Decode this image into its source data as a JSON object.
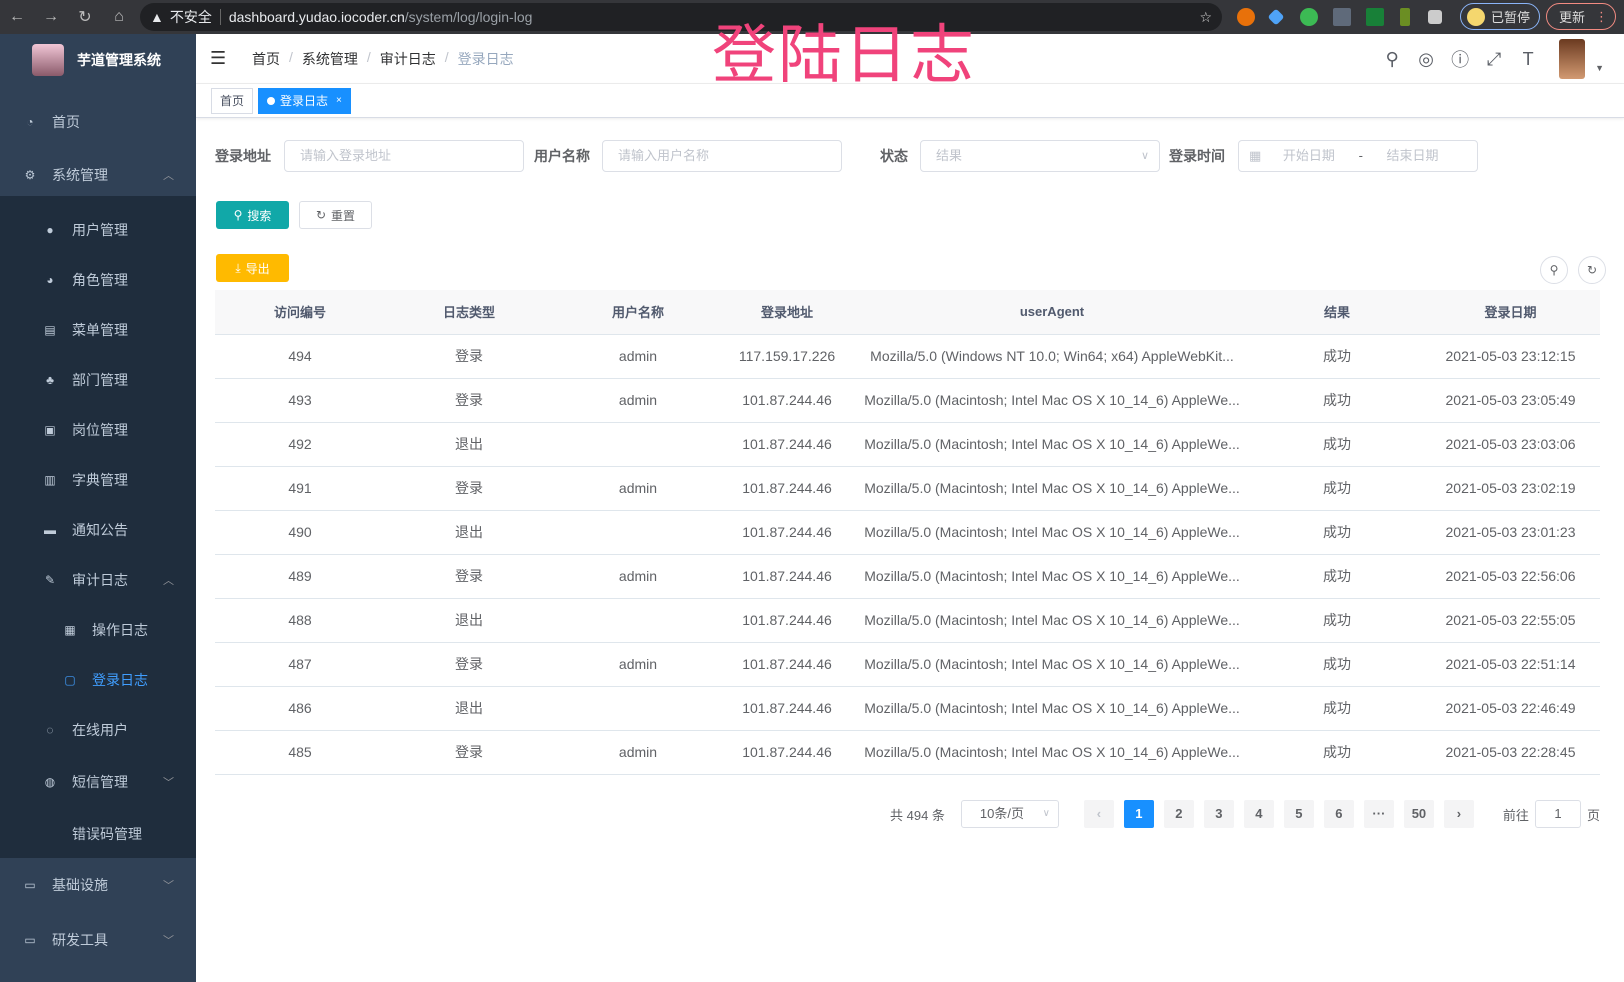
{
  "browser": {
    "security": "不安全",
    "host": "dashboard.yudao.iocoder.cn",
    "path": "/system/log/login-log",
    "profile": "已暂停",
    "update": "更新"
  },
  "sidebar": {
    "title": "芋道管理系统",
    "items": [
      {
        "label": "首页",
        "icon": "dashboard-icon"
      },
      {
        "label": "系统管理",
        "icon": "gear-icon",
        "expanded": true
      },
      {
        "label": "用户管理",
        "icon": "user-icon"
      },
      {
        "label": "角色管理",
        "icon": "peoples-icon"
      },
      {
        "label": "菜单管理",
        "icon": "tree-table-icon"
      },
      {
        "label": "部门管理",
        "icon": "tree-icon"
      },
      {
        "label": "岗位管理",
        "icon": "post-icon"
      },
      {
        "label": "字典管理",
        "icon": "dict-icon"
      },
      {
        "label": "通知公告",
        "icon": "message-icon"
      },
      {
        "label": "审计日志",
        "icon": "log-icon",
        "expanded": true
      },
      {
        "label": "操作日志",
        "icon": "form-icon"
      },
      {
        "label": "登录日志",
        "icon": "logininfor-icon",
        "active": true
      },
      {
        "label": "在线用户",
        "icon": "online-icon"
      },
      {
        "label": "短信管理",
        "icon": "validCode-icon",
        "expanded": false
      },
      {
        "label": "错误码管理",
        "icon": "code-icon"
      },
      {
        "label": "基础设施",
        "icon": "monitor-icon",
        "expanded": false
      },
      {
        "label": "研发工具",
        "icon": "tool-icon",
        "expanded": false
      }
    ]
  },
  "header": {
    "breadcrumb": [
      "首页",
      "系统管理",
      "审计日志",
      "登录日志"
    ],
    "overlay_title": "登陆日志"
  },
  "tags": [
    "首页",
    "登录日志"
  ],
  "filters": {
    "ip_label": "登录地址",
    "ip_placeholder": "请输入登录地址",
    "user_label": "用户名称",
    "user_placeholder": "请输入用户名称",
    "status_label": "状态",
    "status_placeholder": "结果",
    "time_label": "登录时间",
    "start_placeholder": "开始日期",
    "range_sep": "-",
    "end_placeholder": "结束日期"
  },
  "buttons": {
    "search": "搜索",
    "reset": "重置",
    "export": "导出"
  },
  "colors": {
    "sidebar": "#304156",
    "submenu": "#1f2d3d",
    "primary": "#1890ff",
    "search": "#11a8a8",
    "export": "#ffba00",
    "overlay": "#f0437b"
  },
  "table": {
    "columns": [
      "访问编号",
      "日志类型",
      "用户名称",
      "登录地址",
      "userAgent",
      "结果",
      "登录日期"
    ],
    "rows": [
      [
        "494",
        "登录",
        "admin",
        "117.159.17.226",
        "Mozilla/5.0 (Windows NT 10.0; Win64; x64) AppleWebKit...",
        "成功",
        "2021-05-03 23:12:15"
      ],
      [
        "493",
        "登录",
        "admin",
        "101.87.244.46",
        "Mozilla/5.0 (Macintosh; Intel Mac OS X 10_14_6) AppleWe...",
        "成功",
        "2021-05-03 23:05:49"
      ],
      [
        "492",
        "退出",
        "",
        "101.87.244.46",
        "Mozilla/5.0 (Macintosh; Intel Mac OS X 10_14_6) AppleWe...",
        "成功",
        "2021-05-03 23:03:06"
      ],
      [
        "491",
        "登录",
        "admin",
        "101.87.244.46",
        "Mozilla/5.0 (Macintosh; Intel Mac OS X 10_14_6) AppleWe...",
        "成功",
        "2021-05-03 23:02:19"
      ],
      [
        "490",
        "退出",
        "",
        "101.87.244.46",
        "Mozilla/5.0 (Macintosh; Intel Mac OS X 10_14_6) AppleWe...",
        "成功",
        "2021-05-03 23:01:23"
      ],
      [
        "489",
        "登录",
        "admin",
        "101.87.244.46",
        "Mozilla/5.0 (Macintosh; Intel Mac OS X 10_14_6) AppleWe...",
        "成功",
        "2021-05-03 22:56:06"
      ],
      [
        "488",
        "退出",
        "",
        "101.87.244.46",
        "Mozilla/5.0 (Macintosh; Intel Mac OS X 10_14_6) AppleWe...",
        "成功",
        "2021-05-03 22:55:05"
      ],
      [
        "487",
        "登录",
        "admin",
        "101.87.244.46",
        "Mozilla/5.0 (Macintosh; Intel Mac OS X 10_14_6) AppleWe...",
        "成功",
        "2021-05-03 22:51:14"
      ],
      [
        "486",
        "退出",
        "",
        "101.87.244.46",
        "Mozilla/5.0 (Macintosh; Intel Mac OS X 10_14_6) AppleWe...",
        "成功",
        "2021-05-03 22:46:49"
      ],
      [
        "485",
        "登录",
        "admin",
        "101.87.244.46",
        "Mozilla/5.0 (Macintosh; Intel Mac OS X 10_14_6) AppleWe...",
        "成功",
        "2021-05-03 22:28:45"
      ]
    ]
  },
  "pagination": {
    "total": "共 494 条",
    "page_size": "10条/页",
    "pages": [
      "1",
      "2",
      "3",
      "4",
      "5",
      "6",
      "···",
      "50"
    ],
    "current": "1",
    "goto_label": "前往",
    "goto_value": "1",
    "goto_suffix": "页"
  }
}
